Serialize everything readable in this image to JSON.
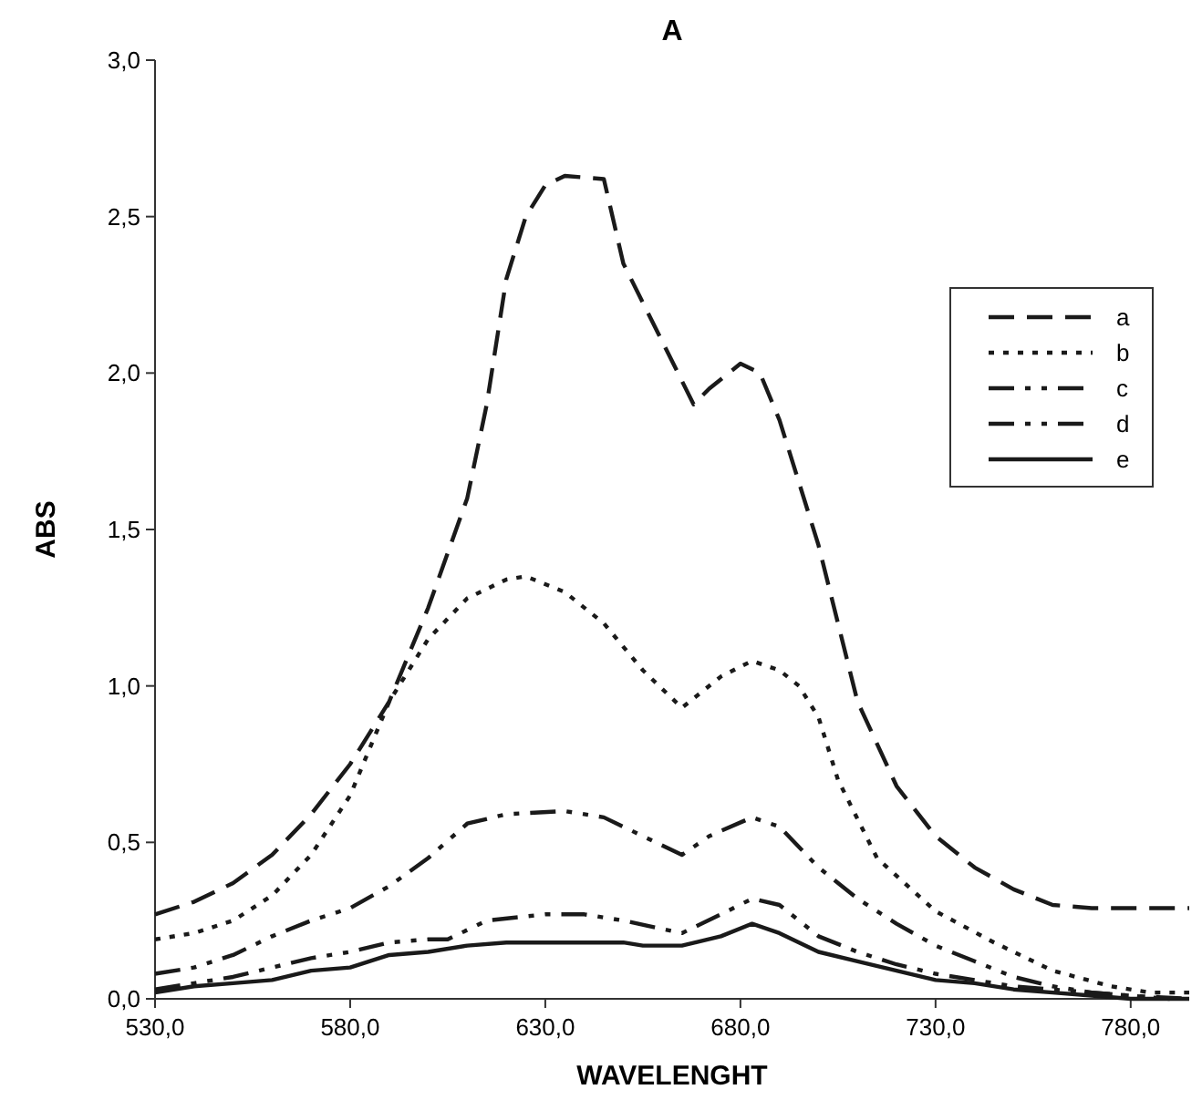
{
  "chart_data": {
    "type": "line",
    "title": "A",
    "xlabel": "WAVELENGHT",
    "ylabel": "ABS",
    "xlim": [
      530,
      795
    ],
    "ylim": [
      0,
      3
    ],
    "xticks": [
      {
        "value": 530,
        "label": "530,0"
      },
      {
        "value": 580,
        "label": "580,0"
      },
      {
        "value": 630,
        "label": "630,0"
      },
      {
        "value": 680,
        "label": "680,0"
      },
      {
        "value": 730,
        "label": "730,0"
      },
      {
        "value": 780,
        "label": "780,0"
      }
    ],
    "yticks": [
      {
        "value": 0,
        "label": "0,0"
      },
      {
        "value": 0.5,
        "label": "0,5"
      },
      {
        "value": 1,
        "label": "1,0"
      },
      {
        "value": 1.5,
        "label": "1,5"
      },
      {
        "value": 2,
        "label": "2,0"
      },
      {
        "value": 2.5,
        "label": "2,5"
      },
      {
        "value": 3,
        "label": "3,0"
      }
    ],
    "grid": false,
    "legend": "right",
    "series": [
      {
        "name": "a",
        "color": "#1a1a1a",
        "line_style": "dashed",
        "x": [
          530,
          540,
          550,
          560,
          570,
          580,
          590,
          600,
          610,
          615,
          620,
          625,
          630,
          635,
          645,
          650,
          660,
          668,
          672,
          680,
          685,
          690,
          700,
          710,
          720,
          730,
          740,
          750,
          760,
          770,
          795
        ],
        "values": [
          0.27,
          0.31,
          0.37,
          0.46,
          0.59,
          0.75,
          0.95,
          1.25,
          1.6,
          1.9,
          2.3,
          2.5,
          2.6,
          2.63,
          2.62,
          2.35,
          2.1,
          1.9,
          1.95,
          2.03,
          2.0,
          1.85,
          1.45,
          0.95,
          0.68,
          0.52,
          0.42,
          0.35,
          0.3,
          0.29,
          0.29
        ]
      },
      {
        "name": "b",
        "color": "#1a1a1a",
        "line_style": "dotted",
        "x": [
          530,
          540,
          550,
          560,
          570,
          580,
          590,
          600,
          610,
          620,
          625,
          635,
          645,
          655,
          665,
          675,
          683,
          690,
          695,
          700,
          705,
          715,
          730,
          745,
          760,
          775,
          785,
          795
        ],
        "values": [
          0.19,
          0.21,
          0.25,
          0.33,
          0.46,
          0.65,
          0.95,
          1.15,
          1.28,
          1.34,
          1.35,
          1.3,
          1.2,
          1.05,
          0.93,
          1.03,
          1.08,
          1.05,
          1.0,
          0.9,
          0.7,
          0.45,
          0.28,
          0.18,
          0.09,
          0.04,
          0.02,
          0.02
        ]
      },
      {
        "name": "c",
        "color": "#1a1a1a",
        "line_style": "dashdot",
        "x": [
          530,
          540,
          550,
          560,
          570,
          580,
          590,
          600,
          610,
          620,
          635,
          645,
          655,
          665,
          672,
          683,
          690,
          700,
          710,
          720,
          730,
          740,
          750,
          760,
          770,
          780,
          790
        ],
        "values": [
          0.08,
          0.1,
          0.14,
          0.2,
          0.25,
          0.29,
          0.36,
          0.45,
          0.56,
          0.59,
          0.6,
          0.58,
          0.52,
          0.46,
          0.52,
          0.58,
          0.55,
          0.42,
          0.32,
          0.24,
          0.17,
          0.12,
          0.07,
          0.04,
          0.02,
          0.01,
          0.0
        ]
      },
      {
        "name": "d",
        "color": "#1a1a1a",
        "line_style": "dashdot",
        "x": [
          530,
          540,
          550,
          560,
          570,
          580,
          590,
          600,
          605,
          615,
          630,
          640,
          650,
          665,
          675,
          683,
          690,
          700,
          710,
          720,
          730,
          740,
          750,
          760,
          770,
          780,
          795
        ],
        "values": [
          0.03,
          0.05,
          0.07,
          0.1,
          0.13,
          0.15,
          0.18,
          0.19,
          0.19,
          0.25,
          0.27,
          0.27,
          0.25,
          0.21,
          0.27,
          0.32,
          0.3,
          0.2,
          0.15,
          0.11,
          0.08,
          0.06,
          0.04,
          0.03,
          0.02,
          0.01,
          0.0
        ]
      },
      {
        "name": "e",
        "color": "#1a1a1a",
        "line_style": "solid",
        "x": [
          530,
          540,
          550,
          560,
          570,
          580,
          590,
          600,
          610,
          620,
          650,
          655,
          665,
          675,
          683,
          690,
          700,
          710,
          720,
          730,
          740,
          750,
          760,
          770,
          780,
          795
        ],
        "values": [
          0.02,
          0.04,
          0.05,
          0.06,
          0.09,
          0.1,
          0.14,
          0.15,
          0.17,
          0.18,
          0.18,
          0.17,
          0.17,
          0.2,
          0.24,
          0.21,
          0.15,
          0.12,
          0.09,
          0.06,
          0.05,
          0.03,
          0.02,
          0.01,
          0.0,
          0.0
        ]
      }
    ]
  }
}
